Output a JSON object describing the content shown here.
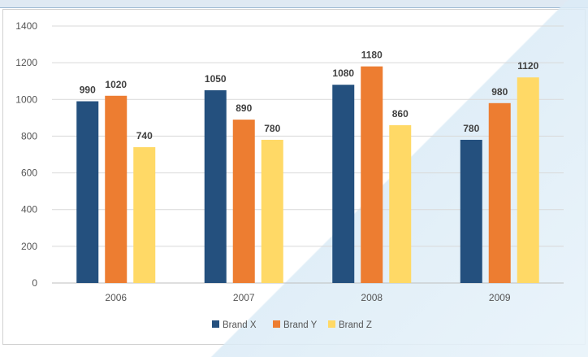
{
  "chart_data": {
    "type": "bar",
    "categories": [
      "2006",
      "2007",
      "2008",
      "2009"
    ],
    "series": [
      {
        "name": "Brand X",
        "values": [
          990,
          1050,
          1080,
          780
        ],
        "color": "#24507e"
      },
      {
        "name": "Brand Y",
        "values": [
          1020,
          890,
          1180,
          980
        ],
        "color": "#ed7d31"
      },
      {
        "name": "Brand Z",
        "values": [
          740,
          780,
          860,
          1120
        ],
        "color": "#ffd966"
      }
    ],
    "y_ticks": [
      "0",
      "200",
      "400",
      "600",
      "800",
      "1000",
      "1200",
      "1400"
    ],
    "ylim": [
      0,
      1400
    ],
    "grid": true,
    "legend_position": "bottom",
    "title": "",
    "xlabel": "",
    "ylabel": ""
  }
}
